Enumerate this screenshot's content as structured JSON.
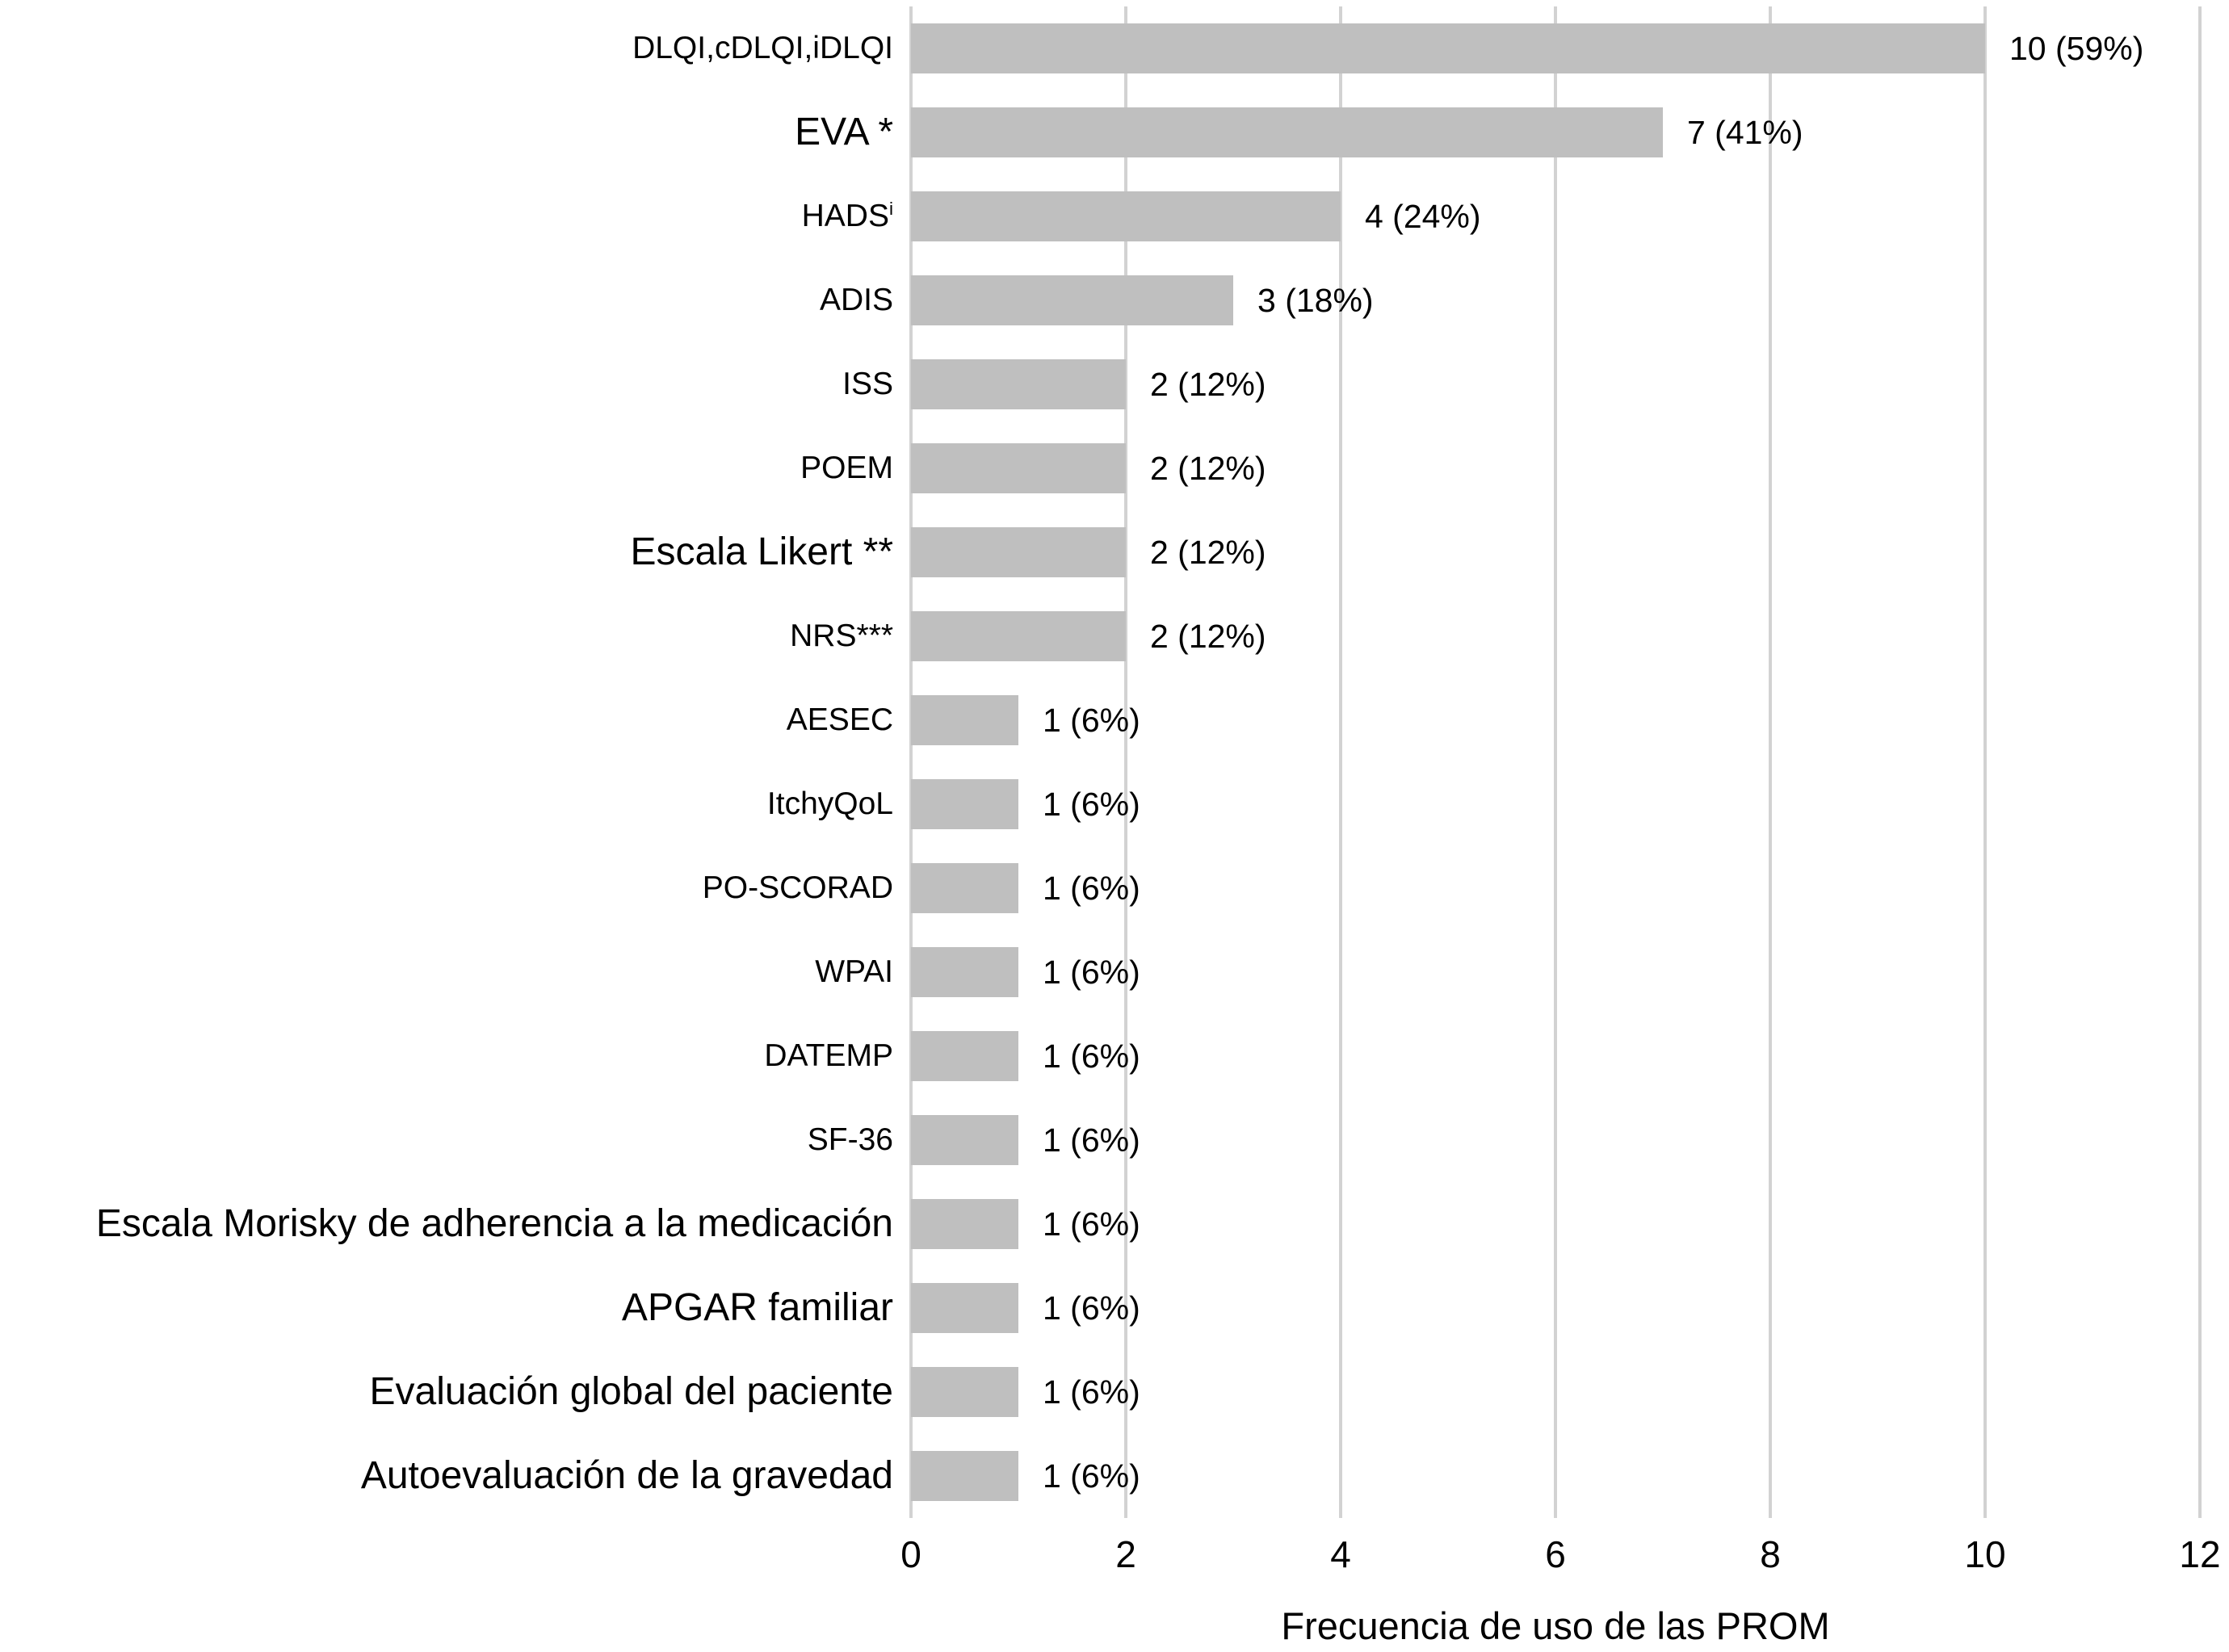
{
  "chart_data": {
    "type": "bar",
    "orientation": "horizontal",
    "title": "",
    "xlabel": "Frecuencia de uso de las PROM",
    "ylabel": "",
    "xlim": [
      0,
      12
    ],
    "xticks": [
      "0",
      "2",
      "4",
      "6",
      "8",
      "10",
      "12"
    ],
    "grid": "vertical gridlines every 2 units",
    "legend": "none",
    "colors": {
      "bar": "#bfbfbf",
      "gridline": "#d2d2d2",
      "text": "#000000",
      "background": "#ffffff"
    },
    "categories": [
      "DLQI,cDLQI,iDLQI",
      "EVA *",
      "HADSⁱ",
      "ADIS",
      "ISS",
      "POEM",
      "Escala Likert **",
      "NRS***",
      "AESEC",
      "ItchyQoL",
      "PO-SCORAD",
      "WPAI",
      "DATEMP",
      "SF-36",
      "Escala Morisky de adherencia a la medicación",
      "APGAR familiar",
      "Evaluación global del paciente",
      "Autoevaluación de la gravedad"
    ],
    "values": [
      10,
      7,
      4,
      3,
      2,
      2,
      2,
      2,
      1,
      1,
      1,
      1,
      1,
      1,
      1,
      1,
      1,
      1
    ],
    "value_labels": [
      "10 (59%)",
      "7 (41%)",
      "4 (24%)",
      "3 (18%)",
      "2 (12%)",
      "2 (12%)",
      "2 (12%)",
      "2 (12%)",
      "1 (6%)",
      "1 (6%)",
      "1 (6%)",
      "1 (6%)",
      "1 (6%)",
      "1 (6%)",
      "1 (6%)",
      "1 (6%)",
      "1 (6%)",
      "1 (6%)"
    ],
    "rows": [
      {
        "label": "DLQI,cDLQI,iDLQI",
        "sup": "",
        "value": 10,
        "annotation": "10 (59%)",
        "large": false
      },
      {
        "label": "EVA *",
        "sup": "",
        "value": 7,
        "annotation": "7 (41%)",
        "large": true
      },
      {
        "label": "HADS",
        "sup": "i",
        "value": 4,
        "annotation": "4 (24%)",
        "large": false
      },
      {
        "label": "ADIS",
        "sup": "",
        "value": 3,
        "annotation": "3 (18%)",
        "large": false
      },
      {
        "label": "ISS",
        "sup": "",
        "value": 2,
        "annotation": "2 (12%)",
        "large": false
      },
      {
        "label": "POEM",
        "sup": "",
        "value": 2,
        "annotation": "2 (12%)",
        "large": false
      },
      {
        "label": "Escala Likert **",
        "sup": "",
        "value": 2,
        "annotation": "2 (12%)",
        "large": true
      },
      {
        "label": "NRS***",
        "sup": "",
        "value": 2,
        "annotation": "2 (12%)",
        "large": false
      },
      {
        "label": "AESEC",
        "sup": "",
        "value": 1,
        "annotation": "1 (6%)",
        "large": false
      },
      {
        "label": "ItchyQoL",
        "sup": "",
        "value": 1,
        "annotation": "1 (6%)",
        "large": false
      },
      {
        "label": "PO-SCORAD",
        "sup": "",
        "value": 1,
        "annotation": "1 (6%)",
        "large": false
      },
      {
        "label": "WPAI",
        "sup": "",
        "value": 1,
        "annotation": "1 (6%)",
        "large": false
      },
      {
        "label": "DATEMP",
        "sup": "",
        "value": 1,
        "annotation": "1 (6%)",
        "large": false
      },
      {
        "label": "SF-36",
        "sup": "",
        "value": 1,
        "annotation": "1 (6%)",
        "large": false
      },
      {
        "label": "Escala Morisky de adherencia a la medicación",
        "sup": "",
        "value": 1,
        "annotation": "1 (6%)",
        "large": true
      },
      {
        "label": "APGAR familiar",
        "sup": "",
        "value": 1,
        "annotation": "1 (6%)",
        "large": true
      },
      {
        "label": "Evaluación global del paciente",
        "sup": "",
        "value": 1,
        "annotation": "1 (6%)",
        "large": true
      },
      {
        "label": "Autoevaluación de la gravedad",
        "sup": "",
        "value": 1,
        "annotation": "1 (6%)",
        "large": true
      }
    ]
  }
}
